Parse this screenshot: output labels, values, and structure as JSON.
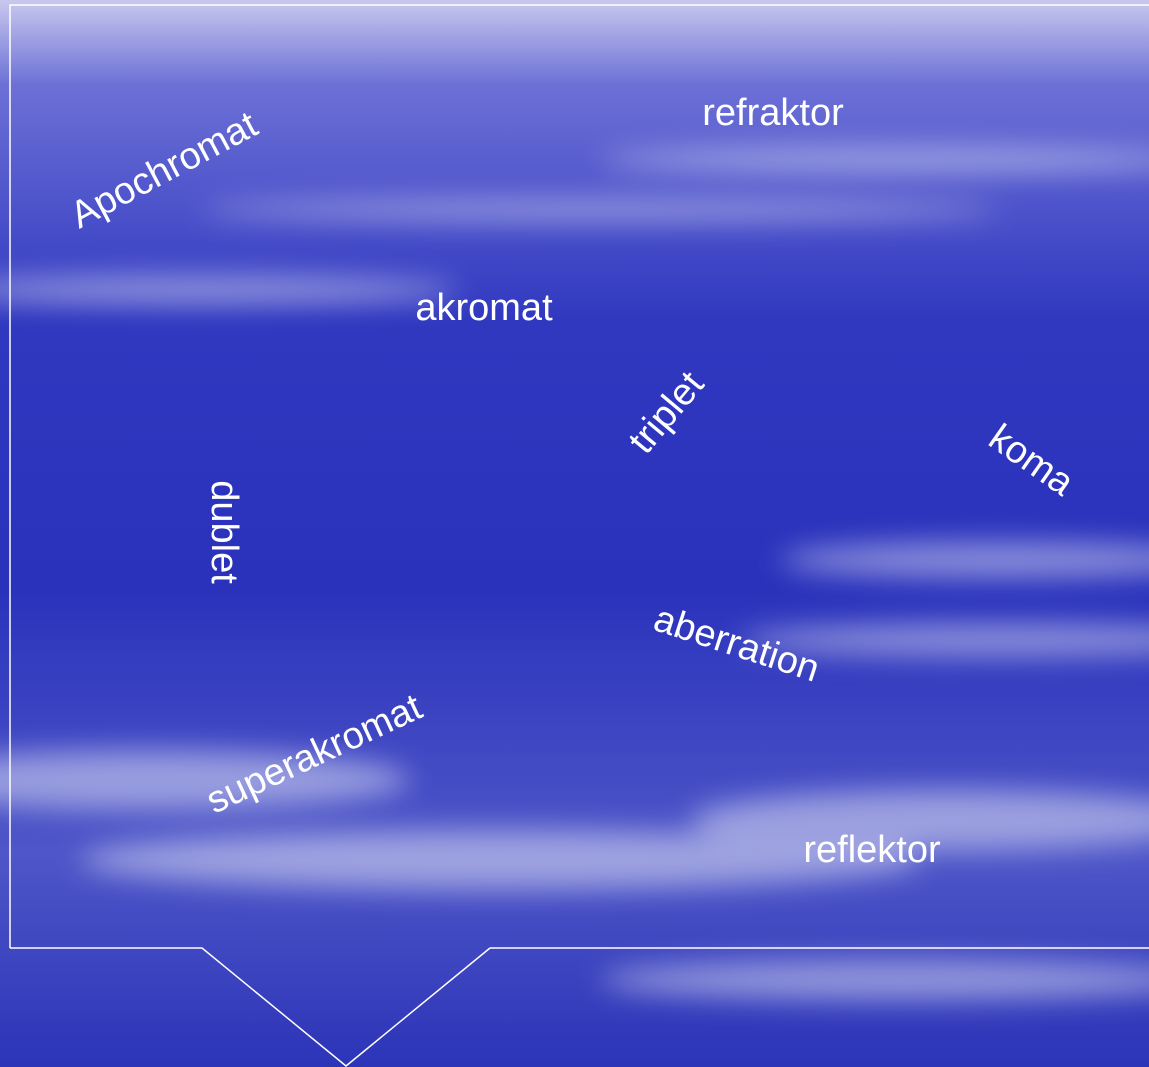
{
  "words": [
    "refraktor",
    "Apochromat",
    "akromat",
    "triplet",
    "koma",
    "dublet",
    "aberration",
    "superakromat",
    "reflektor"
  ]
}
